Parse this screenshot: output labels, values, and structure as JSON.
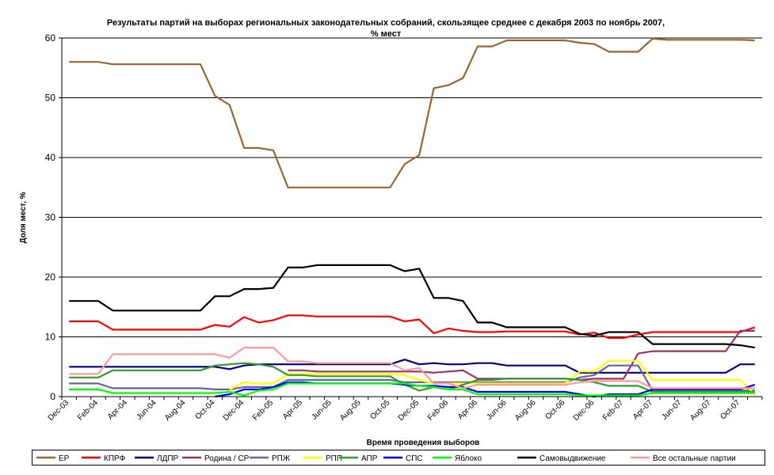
{
  "chart_data": {
    "type": "line",
    "title": "Результаты партий на выборах региональных законодательных собраний, скользящее среднее с декабря 2003 по ноябрь 2007,",
    "subtitle": "% мест",
    "xlabel": "Время проведения выборов",
    "ylabel": "Доля мест, %",
    "ylim": [
      0,
      60
    ],
    "yticks": [
      0,
      10,
      20,
      30,
      40,
      50,
      60
    ],
    "grid": "horizontal",
    "legend_position": "bottom",
    "tick_labels": [
      "Dec-03",
      "Feb-04",
      "Apr-04",
      "Jun-04",
      "Aug-04",
      "Oct-04",
      "Dec-04",
      "Feb-05",
      "Apr-05",
      "Jun-05",
      "Aug-05",
      "Oct-05",
      "Dec-05",
      "Feb-06",
      "Apr-06",
      "Jun-06",
      "Aug-06",
      "Oct-06",
      "Dec-06",
      "Feb-07",
      "Apr-07",
      "Jun-07",
      "Aug-07",
      "Oct-07"
    ],
    "x": [
      "Dec-03",
      "Jan-04",
      "Feb-04",
      "Mar-04",
      "Apr-04",
      "May-04",
      "Jun-04",
      "Jul-04",
      "Aug-04",
      "Sep-04",
      "Oct-04",
      "Nov-04",
      "Dec-04",
      "Jan-05",
      "Feb-05",
      "Mar-05",
      "Apr-05",
      "May-05",
      "Jun-05",
      "Jul-05",
      "Aug-05",
      "Sep-05",
      "Oct-05",
      "Nov-05",
      "Dec-05",
      "Jan-06",
      "Feb-06",
      "Mar-06",
      "Apr-06",
      "May-06",
      "Jun-06",
      "Jul-06",
      "Aug-06",
      "Sep-06",
      "Oct-06",
      "Nov-06",
      "Dec-06",
      "Jan-07",
      "Feb-07",
      "Mar-07",
      "Apr-07",
      "May-07",
      "Jun-07",
      "Jul-07",
      "Aug-07",
      "Sep-07",
      "Oct-07",
      "Nov-07"
    ],
    "series": [
      {
        "name": "ЕР",
        "color": "#996633",
        "values": [
          56,
          56,
          56,
          55.6,
          55.6,
          55.6,
          55.6,
          55.6,
          55.6,
          55.6,
          50.3,
          48.8,
          41.6,
          41.6,
          41.2,
          35,
          35,
          35,
          35,
          35,
          35,
          35,
          35,
          38.9,
          40.4,
          51.6,
          52.1,
          53.3,
          58.6,
          58.6,
          59.6,
          59.6,
          59.6,
          59.6,
          59.6,
          59.2,
          59,
          57.7,
          57.7,
          57.7,
          59.9,
          59.7,
          59.7,
          59.7,
          59.7,
          59.7,
          59.7,
          59.6
        ]
      },
      {
        "name": "КПРФ",
        "color": "#ff0000",
        "values": [
          12.6,
          12.6,
          12.6,
          11.2,
          11.2,
          11.2,
          11.2,
          11.2,
          11.2,
          11.2,
          12,
          11.7,
          13.3,
          12.4,
          12.8,
          13.6,
          13.6,
          13.4,
          13.4,
          13.4,
          13.4,
          13.4,
          13.4,
          12.6,
          12.9,
          10.6,
          11.4,
          11,
          10.8,
          10.8,
          10.9,
          10.9,
          10.9,
          10.9,
          10.9,
          10.4,
          10.7,
          9.8,
          9.8,
          10.4,
          10.8,
          10.8,
          10.8,
          10.8,
          10.8,
          10.8,
          10.8,
          11.6
        ]
      },
      {
        "name": "ЛДПР",
        "color": "#000080",
        "values": [
          5,
          5,
          5,
          5,
          5,
          5,
          5,
          5,
          5,
          5,
          5,
          4.6,
          5.2,
          5.4,
          5.4,
          5.4,
          5.4,
          5.4,
          5.4,
          5.4,
          5.4,
          5.4,
          5.4,
          6.2,
          5.4,
          5.6,
          5.4,
          5.4,
          5.6,
          5.6,
          5.2,
          5.2,
          5.2,
          5.2,
          5.2,
          4,
          4,
          4,
          4,
          4,
          4,
          4,
          4,
          4,
          4,
          4,
          5.4,
          5.4
        ]
      },
      {
        "name": "Родина / СР",
        "color": "#993366",
        "values": [
          null,
          null,
          null,
          null,
          null,
          null,
          null,
          null,
          null,
          null,
          null,
          null,
          null,
          null,
          null,
          4.4,
          4.4,
          4.2,
          4.2,
          4.2,
          4.2,
          4.2,
          4.2,
          4.2,
          4.2,
          4,
          4.2,
          4.4,
          3,
          3,
          3,
          3,
          3,
          3,
          3,
          2.8,
          3,
          3,
          3,
          7.2,
          7.6,
          7.6,
          7.6,
          7.6,
          7.6,
          7.6,
          11,
          11
        ]
      },
      {
        "name": "РПЖ",
        "color": "#666699",
        "values": [
          2.2,
          2.2,
          2.2,
          1.4,
          1.4,
          1.4,
          1.4,
          1.4,
          1.4,
          1.4,
          1.2,
          1.2,
          1.6,
          1.6,
          1.6,
          2.8,
          2.8,
          2.8,
          2.8,
          2.8,
          2.8,
          2.8,
          2.8,
          2.4,
          2.4,
          2.4,
          2.4,
          2.4,
          2.4,
          2.4,
          2.4,
          2.4,
          2.4,
          2.4,
          2.4,
          3.2,
          3.6,
          5.2,
          5.2,
          5.2,
          1,
          1,
          1,
          1,
          1,
          1,
          1,
          1
        ]
      },
      {
        "name": "РПП",
        "color": "#ffff00",
        "values": [
          null,
          null,
          null,
          null,
          null,
          null,
          null,
          null,
          null,
          null,
          null,
          1.2,
          2.4,
          2.2,
          2.2,
          3.8,
          3.8,
          3.8,
          3.8,
          3.8,
          3.8,
          3.8,
          3.8,
          3.6,
          2.8,
          2.2,
          2.2,
          2.2,
          2.2,
          2.2,
          2.2,
          2.2,
          2.2,
          2.2,
          2.2,
          4.2,
          4.2,
          6,
          6,
          6,
          2.8,
          2.8,
          2.8,
          2.8,
          2.8,
          2.8,
          2.8,
          0.4
        ]
      },
      {
        "name": "АПР",
        "color": "#339933",
        "values": [
          3.2,
          3.2,
          3.2,
          4.4,
          4.4,
          4.4,
          4.4,
          4.4,
          4.4,
          4.4,
          5.2,
          5.4,
          5.6,
          5.4,
          5,
          3.6,
          3.6,
          3.4,
          3.4,
          3.4,
          3.4,
          3.4,
          3.4,
          2,
          1,
          1.6,
          1.2,
          2,
          2.8,
          2.8,
          3,
          3,
          3,
          3,
          3,
          2.8,
          2.4,
          1.8,
          1.8,
          1.8,
          0.8,
          0.8,
          0.8,
          0.8,
          0.8,
          0.8,
          0.8,
          0.8
        ]
      },
      {
        "name": "СПС",
        "color": "#0000ff",
        "values": [
          null,
          null,
          null,
          null,
          null,
          null,
          null,
          null,
          null,
          null,
          0,
          0.4,
          1.2,
          1.2,
          1.6,
          2.4,
          2.4,
          2.2,
          2.2,
          2.2,
          2.2,
          2.2,
          2.2,
          2,
          1.8,
          1.8,
          1.6,
          1.6,
          0.8,
          0.8,
          0.8,
          0.8,
          0.8,
          0.8,
          0.8,
          0.4,
          0,
          0.4,
          0.4,
          0.4,
          1.2,
          1.2,
          1.2,
          1.2,
          1.2,
          1.2,
          1.2,
          2
        ]
      },
      {
        "name": "Яблоко",
        "color": "#00ff00",
        "values": [
          1.2,
          1.2,
          1.2,
          0.6,
          0.6,
          0.6,
          0.6,
          0.6,
          0.6,
          0.6,
          0.6,
          0.8,
          0.2,
          1,
          1.2,
          2.2,
          2.2,
          2.2,
          2.2,
          2.2,
          2.2,
          2.2,
          2.2,
          2.2,
          1.8,
          1.6,
          1.2,
          1.2,
          0.4,
          0.4,
          0.4,
          0.4,
          0.4,
          0.4,
          0.4,
          0.2,
          0.2,
          0.2,
          0.2,
          0.2,
          0.6,
          0.6,
          0.6,
          0.6,
          0.6,
          0.6,
          0.6,
          0.6
        ]
      },
      {
        "name": "Самовыдвижение",
        "color": "#000000",
        "values": [
          16,
          16,
          16,
          14.4,
          14.4,
          14.4,
          14.4,
          14.4,
          14.4,
          14.4,
          16.8,
          16.8,
          18,
          18,
          18.2,
          21.6,
          21.6,
          22,
          22,
          22,
          22,
          22,
          22,
          21,
          21.4,
          16.5,
          16.5,
          16,
          12.4,
          12.4,
          11.6,
          11.6,
          11.6,
          11.6,
          11.6,
          10.5,
          10.2,
          10.8,
          10.8,
          10.8,
          8.8,
          8.8,
          8.8,
          8.8,
          8.8,
          8.8,
          8.6,
          8.2
        ]
      },
      {
        "name": "Все остальные партии",
        "color": "#ff9999",
        "values": [
          3.8,
          3.8,
          3.8,
          7.1,
          7.1,
          7.1,
          7.1,
          7.1,
          7.1,
          7.1,
          7.1,
          6.5,
          8.2,
          8.2,
          8.2,
          5.9,
          5.9,
          5.6,
          5.6,
          5.6,
          5.6,
          5.6,
          5.6,
          4.4,
          4.8,
          2.2,
          2.2,
          1.4,
          2,
          2,
          2,
          2,
          2,
          2,
          2,
          2.4,
          2.6,
          2.6,
          2.6,
          2.6,
          1.4,
          1.4,
          1.4,
          1.4,
          1.4,
          1.4,
          1.4,
          1.4
        ]
      }
    ]
  }
}
